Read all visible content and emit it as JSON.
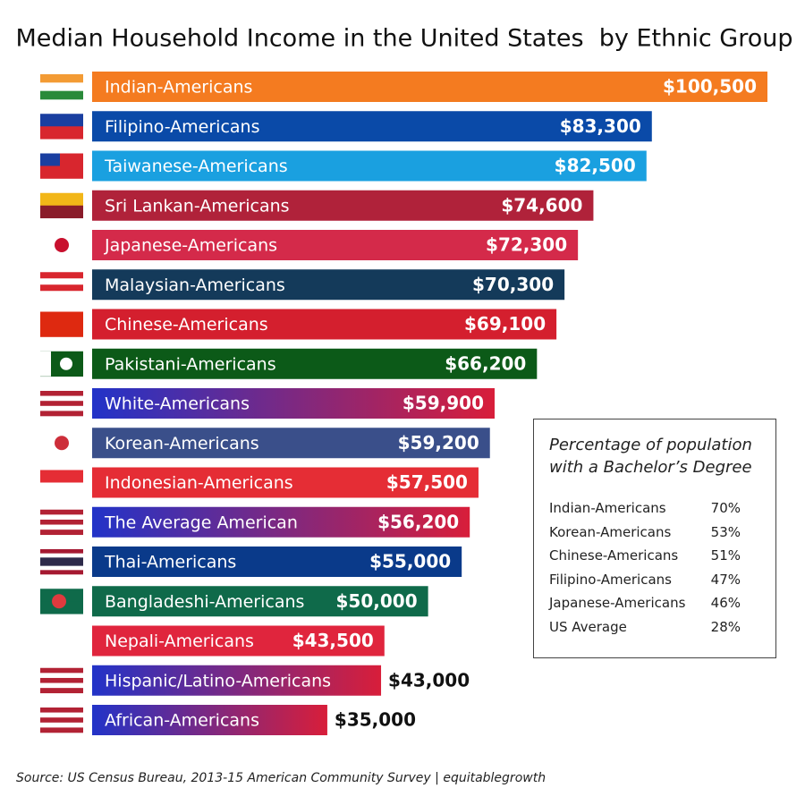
{
  "chart_data": {
    "type": "bar",
    "orientation": "horizontal",
    "title": "Median Household Income in the United States  by Ethnic Group",
    "categories": [
      "Indian-Americans",
      "Filipino-Americans",
      "Taiwanese-Americans",
      "Sri Lankan-Americans",
      "Japanese-Americans",
      "Malaysian-Americans",
      "Chinese-Americans",
      "Pakistani-Americans",
      "White-Americans",
      "Korean-Americans",
      "Indonesian-Americans",
      "The Average American",
      "Thai-Americans",
      "Bangladeshi-Americans",
      "Nepali-Americans",
      "Hispanic/Latino-Americans",
      "African-Americans"
    ],
    "values": [
      100500,
      83300,
      82500,
      74600,
      72300,
      70300,
      69100,
      66200,
      59900,
      59200,
      57500,
      56200,
      55000,
      50000,
      43500,
      43000,
      35000
    ],
    "value_labels": [
      "$100,500",
      "$83,300",
      "$82,500",
      "$74,600",
      "$72,300",
      "$70,300",
      "$69,100",
      "$66,200",
      "$59,900",
      "$59,200",
      "$57,500",
      "$56,200",
      "$55,000",
      "$50,000",
      "$43,500",
      "$43,000",
      "$35,000"
    ],
    "colors": [
      "#f47b20",
      "#0a4aa8",
      "#1aa0e0",
      "#b0223a",
      "#d42a4a",
      "#143a5a",
      "#d41f2e",
      "#0c5a18",
      [
        "#2233c8",
        "#d81e3a"
      ],
      "#3a4f8a",
      "#e52d35",
      [
        "#2233c8",
        "#d81e3a"
      ],
      "#0a3a8a",
      "#0f6a4a",
      "#e0253d",
      [
        "#2233c8",
        "#d81e3a"
      ],
      [
        "#2233c8",
        "#d81e3a"
      ]
    ]
  },
  "inset": {
    "title": "Percentage of population with a Bachelor’s Degree",
    "rows": [
      [
        "Indian-Americans",
        "70%"
      ],
      [
        "Korean-Americans",
        "53%"
      ],
      [
        "Chinese-Americans",
        "51%"
      ],
      [
        "Filipino-Americans",
        "47%"
      ],
      [
        "Japanese-Americans",
        "46%"
      ],
      [
        "US Average",
        "28%"
      ]
    ]
  },
  "source": "Source: US Census Bureau, 2013-15 American Community Survey | equitablegrowth"
}
